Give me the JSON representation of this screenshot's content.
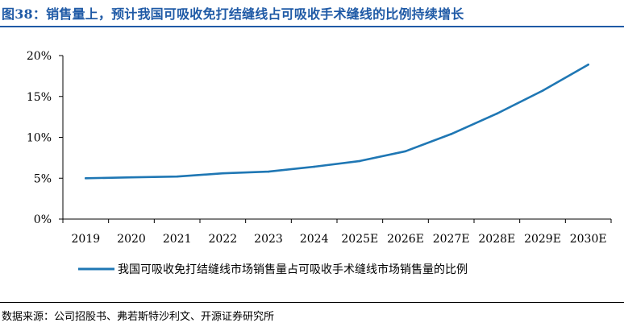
{
  "figure": {
    "title": "图38：销售量上，预计我国可吸收免打结缝线占可吸收手术缝线的比例持续增长",
    "source": "数据来源：公司招股书、弗若斯特沙利文、开源证券研究所"
  },
  "colors": {
    "title": "#1f5aa6",
    "series": "#1f77b4"
  },
  "chart_data": {
    "type": "line",
    "title": "",
    "xlabel": "",
    "ylabel": "",
    "categories": [
      "2019",
      "2020",
      "2021",
      "2022",
      "2023",
      "2024",
      "2025E",
      "2026E",
      "2027E",
      "2028E",
      "2029E",
      "2030E"
    ],
    "ylim": [
      0,
      20
    ],
    "yticks": [
      0,
      5,
      10,
      15,
      20
    ],
    "ytick_labels": [
      "0%",
      "5%",
      "10%",
      "15%",
      "20%"
    ],
    "grid": false,
    "legend_position": "bottom",
    "series": [
      {
        "name": "我国可吸收免打结缝线市场销售量占可吸收手术缝线市场销售量的比例",
        "values": [
          5.0,
          5.1,
          5.2,
          5.6,
          5.8,
          6.4,
          7.1,
          8.3,
          10.4,
          12.9,
          15.7,
          18.9
        ]
      }
    ]
  }
}
